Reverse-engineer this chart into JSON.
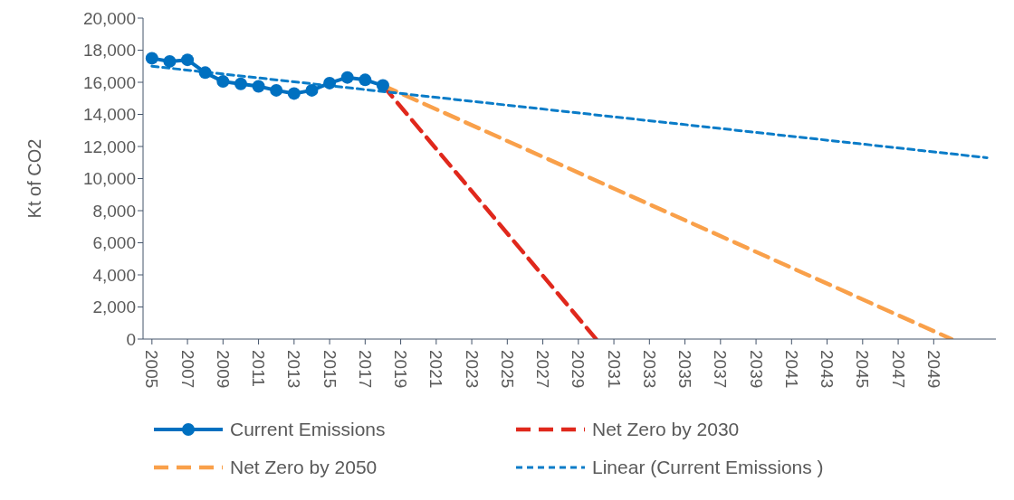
{
  "chart_data": {
    "type": "line",
    "ylabel": "Kt of CO2",
    "xlim": [
      2004.5,
      2052.5
    ],
    "xticks": [
      2005,
      2007,
      2009,
      2011,
      2013,
      2015,
      2017,
      2019,
      2021,
      2023,
      2025,
      2027,
      2029,
      2031,
      2033,
      2035,
      2037,
      2039,
      2041,
      2043,
      2045,
      2047,
      2049
    ],
    "ylim": [
      0,
      20000
    ],
    "yticks": [
      {
        "value": 0,
        "label": "0"
      },
      {
        "value": 2000,
        "label": "2,000"
      },
      {
        "value": 4000,
        "label": "4,000"
      },
      {
        "value": 6000,
        "label": "6,000"
      },
      {
        "value": 8000,
        "label": "8,000"
      },
      {
        "value": 10000,
        "label": "10,000"
      },
      {
        "value": 12000,
        "label": "12,000"
      },
      {
        "value": 14000,
        "label": "14,000"
      },
      {
        "value": 16000,
        "label": "16,000"
      },
      {
        "value": 18000,
        "label": "18,000"
      },
      {
        "value": 20000,
        "label": "20,000"
      }
    ],
    "legend": "bottom",
    "series": [
      {
        "name": "Current Emissions",
        "color": "#0070c0",
        "marker": "circle",
        "line_style": "solid",
        "x": [
          2005,
          2006,
          2007,
          2008,
          2009,
          2010,
          2011,
          2012,
          2013,
          2014,
          2015,
          2016,
          2017,
          2018
        ],
        "values": [
          17500,
          17300,
          17400,
          16600,
          16050,
          15900,
          15750,
          15500,
          15300,
          15500,
          15950,
          16300,
          16150,
          15800
        ]
      },
      {
        "name": "Net Zero by 2030",
        "color": "#e0281c",
        "marker": "none",
        "line_style": "dashed",
        "x": [
          2018,
          2030
        ],
        "values": [
          15800,
          0
        ]
      },
      {
        "name": "Net Zero by 2050",
        "color": "#f9a04a",
        "marker": "none",
        "line_style": "dashed",
        "x": [
          2018,
          2050
        ],
        "values": [
          15800,
          0
        ]
      },
      {
        "name": "Linear (Current Emissions )",
        "color": "#0a7cc8",
        "marker": "none",
        "line_style": "dotted",
        "x": [
          2005,
          2052
        ],
        "values": [
          17000,
          11300
        ]
      }
    ]
  }
}
